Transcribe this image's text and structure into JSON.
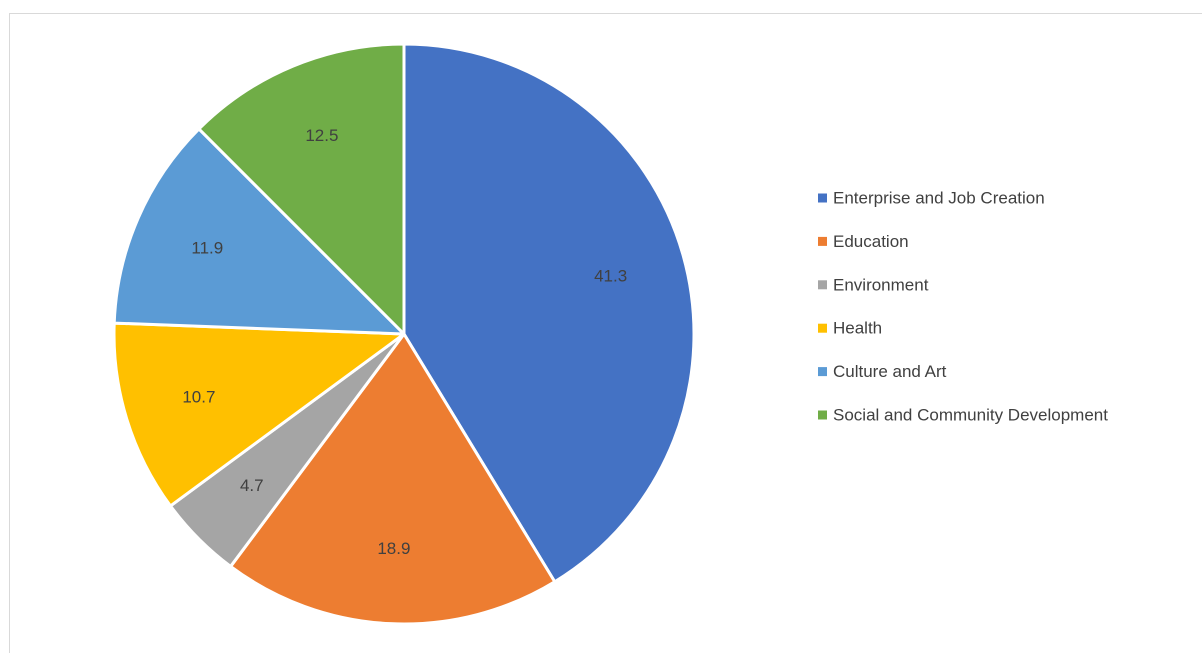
{
  "chart_data": {
    "type": "pie",
    "title": "",
    "categories": [
      "Enterprise and Job Creation",
      "Education",
      "Environment",
      "Health",
      "Culture and Art",
      "Social and Community Development"
    ],
    "values": [
      41.3,
      18.9,
      4.7,
      10.7,
      11.9,
      12.5
    ],
    "data_labels": [
      "41.3",
      "18.9",
      "4.7",
      "10.7",
      "11.9",
      "12.5"
    ],
    "colors": [
      "#4472c4",
      "#ed7d31",
      "#a5a5a5",
      "#ffc000",
      "#5b9bd5",
      "#70ad47"
    ],
    "start_angle_deg": 0,
    "direction": "clockwise",
    "legend_position": "right"
  }
}
